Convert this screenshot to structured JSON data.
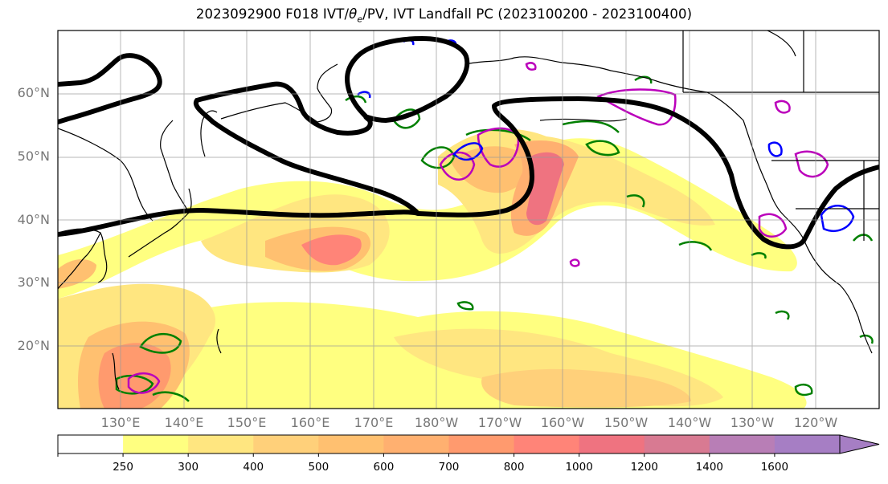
{
  "title": {
    "prefix": "2023092900 F018 IVT/",
    "theta": "θ",
    "theta_sub": "e",
    "suffix": "/PV, IVT Landfall PC (2023100200 - 2023100400)"
  },
  "map": {
    "region": "North Pacific",
    "projection": "PlateCarree",
    "lon_range_deg_east": [
      120,
      250
    ],
    "lat_range_deg_north": [
      10,
      70
    ],
    "land_color": "#ffffff",
    "coastline_color": "#000000",
    "gridlines": true
  },
  "lat_labels": [
    "20°N",
    "30°N",
    "40°N",
    "50°N",
    "60°N"
  ],
  "lon_labels": [
    "130°E",
    "140°E",
    "150°E",
    "160°E",
    "170°E",
    "180°W",
    "170°W",
    "160°W",
    "150°W",
    "140°W",
    "130°W",
    "120°W"
  ],
  "colorbar": {
    "levels": [
      "250",
      "300",
      "400",
      "500",
      "600",
      "700",
      "800",
      "1000",
      "1200",
      "1400",
      "1600"
    ],
    "colors": [
      "#ffffff",
      "#ffff80",
      "#ffe680",
      "#ffd07a",
      "#ffc070",
      "#ffb070",
      "#ff9a6e",
      "#ff8478",
      "#ef7380",
      "#d87a92",
      "#b87eb6",
      "#a67ec4"
    ],
    "extend": "max"
  },
  "contours": {
    "pv_color": "#000000",
    "theta_e_color": "#008000",
    "ivt_pc_positive_color": "#bb00bb",
    "ivt_pc_negative_color": "#0000ff"
  }
}
